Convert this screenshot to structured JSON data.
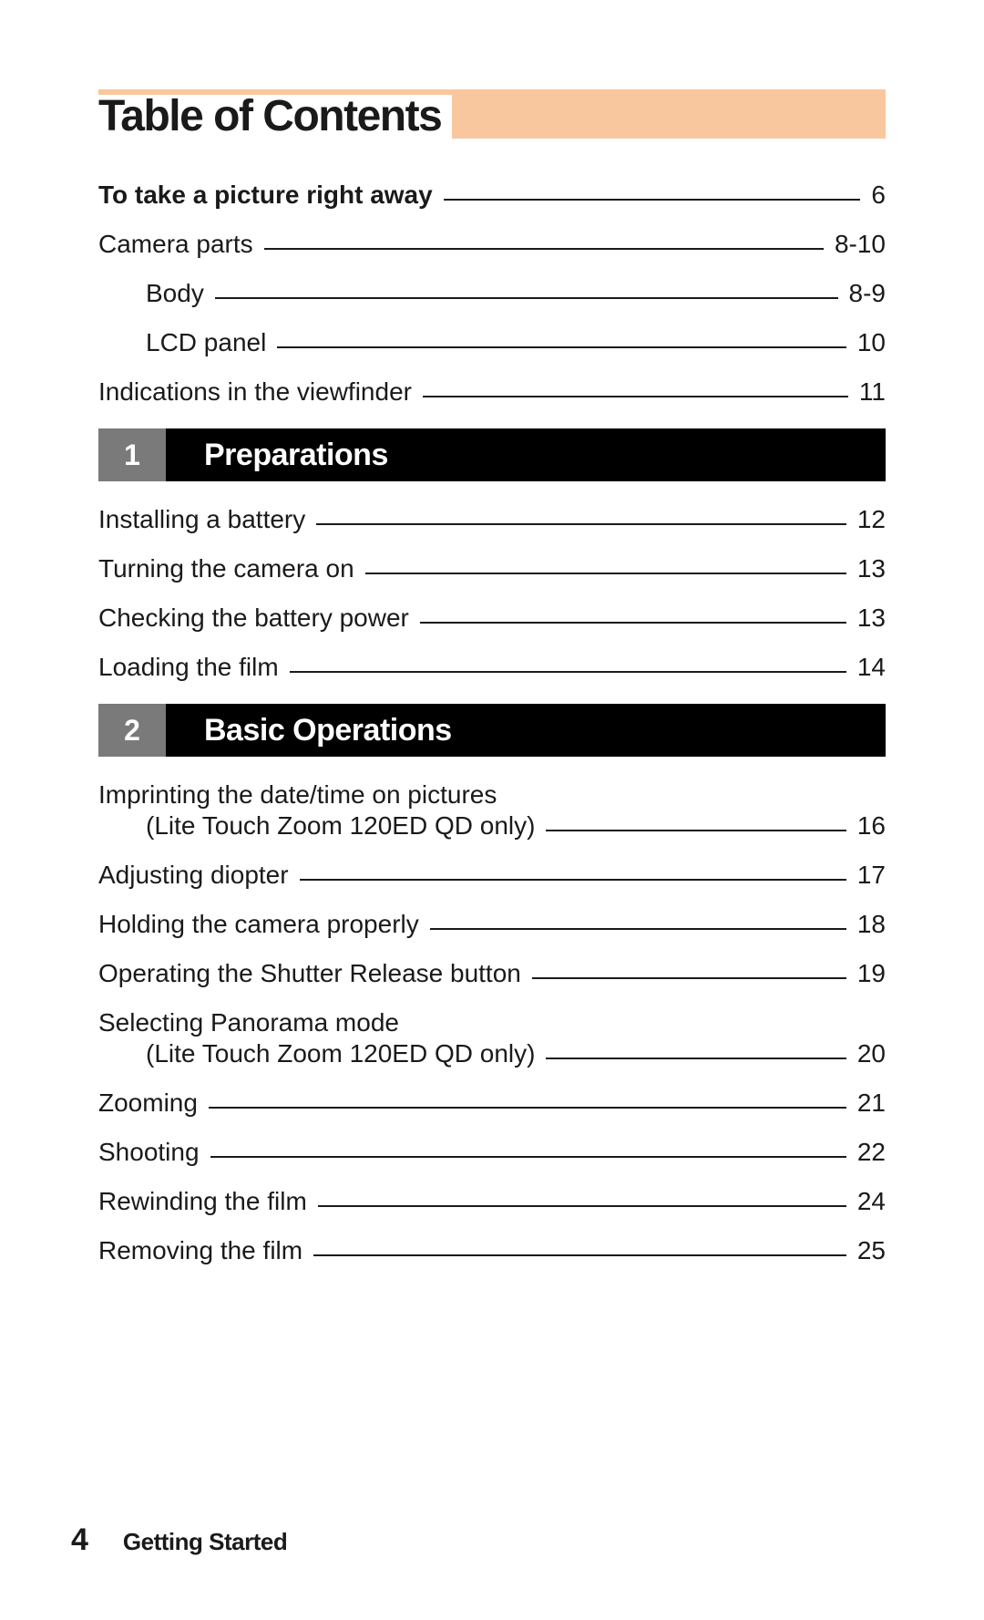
{
  "title": "Table of Contents",
  "title_bg": "#f9c79e",
  "section_num_bg": "#7a7a7a",
  "section_name_bg": "#000000",
  "intro": [
    {
      "label": "To take a picture right away",
      "page": "6",
      "bold": true,
      "indent": 0
    },
    {
      "label": "Camera parts",
      "page": "8-10",
      "bold": false,
      "indent": 0
    },
    {
      "label": "Body",
      "page": "8-9",
      "bold": false,
      "indent": 1
    },
    {
      "label": "LCD panel",
      "page": "10",
      "bold": false,
      "indent": 1
    },
    {
      "label": "Indications in the viewfinder",
      "page": "11",
      "bold": false,
      "indent": 0
    }
  ],
  "sections": [
    {
      "num": "1",
      "name": "Preparations",
      "items": [
        {
          "label": "Installing a battery",
          "page": "12"
        },
        {
          "label": "Turning the camera on",
          "page": "13"
        },
        {
          "label": "Checking the battery power",
          "page": "13"
        },
        {
          "label": "Loading the film",
          "page": "14"
        }
      ]
    },
    {
      "num": "2",
      "name": "Basic Operations",
      "items": [
        {
          "label": "Imprinting the date/time on pictures",
          "sub": "(Lite Touch Zoom 120ED QD only)",
          "page": "16"
        },
        {
          "label": "Adjusting diopter",
          "page": "17"
        },
        {
          "label": "Holding the camera properly",
          "page": "18"
        },
        {
          "label": "Operating the Shutter Release button",
          "page": "19"
        },
        {
          "label": "Selecting Panorama mode",
          "sub": "(Lite Touch Zoom 120ED QD only)",
          "page": "20"
        },
        {
          "label": "Zooming",
          "page": "21"
        },
        {
          "label": "Shooting",
          "page": "22"
        },
        {
          "label": "Rewinding the film",
          "page": "24"
        },
        {
          "label": "Removing the film",
          "page": "25"
        }
      ]
    }
  ],
  "footer": {
    "page_number": "4",
    "text": "Getting Started"
  }
}
